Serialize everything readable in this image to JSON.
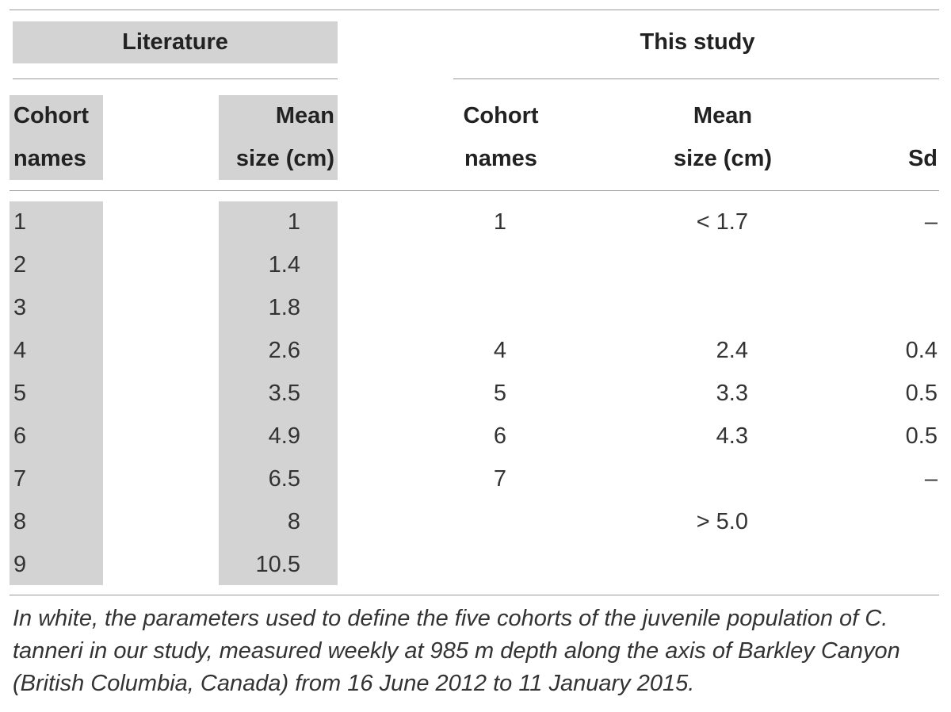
{
  "table": {
    "group_headers": {
      "literature": "Literature",
      "this_study": "This study"
    },
    "column_headers": {
      "lit_cohort": [
        "Cohort",
        "names"
      ],
      "lit_mean": [
        "Mean",
        "size (cm)"
      ],
      "study_cohort": [
        "Cohort",
        "names"
      ],
      "study_mean": [
        "Mean",
        "size (cm)"
      ],
      "study_sd": "Sd"
    },
    "rows": [
      {
        "lit_cohort": "1",
        "lit_mean": "1",
        "study_cohort": "1",
        "study_mean": "< 1.7",
        "study_sd": "–"
      },
      {
        "lit_cohort": "2",
        "lit_mean": "1.4",
        "study_cohort": "",
        "study_mean": "",
        "study_sd": ""
      },
      {
        "lit_cohort": "3",
        "lit_mean": "1.8",
        "study_cohort": "",
        "study_mean": "",
        "study_sd": ""
      },
      {
        "lit_cohort": "4",
        "lit_mean": "2.6",
        "study_cohort": "4",
        "study_mean": "2.4",
        "study_sd": "0.4"
      },
      {
        "lit_cohort": "5",
        "lit_mean": "3.5",
        "study_cohort": "5",
        "study_mean": "3.3",
        "study_sd": "0.5"
      },
      {
        "lit_cohort": "6",
        "lit_mean": "4.9",
        "study_cohort": "6",
        "study_mean": "4.3",
        "study_sd": "0.5"
      },
      {
        "lit_cohort": "7",
        "lit_mean": "6.5",
        "study_cohort": "7",
        "study_mean": "",
        "study_sd": "–"
      },
      {
        "lit_cohort": "8",
        "lit_mean": "8",
        "study_cohort": "",
        "study_mean": "> 5.0",
        "study_sd": ""
      },
      {
        "lit_cohort": "9",
        "lit_mean": "10.5",
        "study_cohort": "",
        "study_mean": "",
        "study_sd": ""
      }
    ]
  },
  "footnote": "In white, the parameters used to define the five cohorts of the juvenile population of C. tanneri in our study, measured weekly at 985 m depth along the axis of Barkley Canyon (British Columbia, Canada) from 16 June 2012 to 11 January 2015."
}
